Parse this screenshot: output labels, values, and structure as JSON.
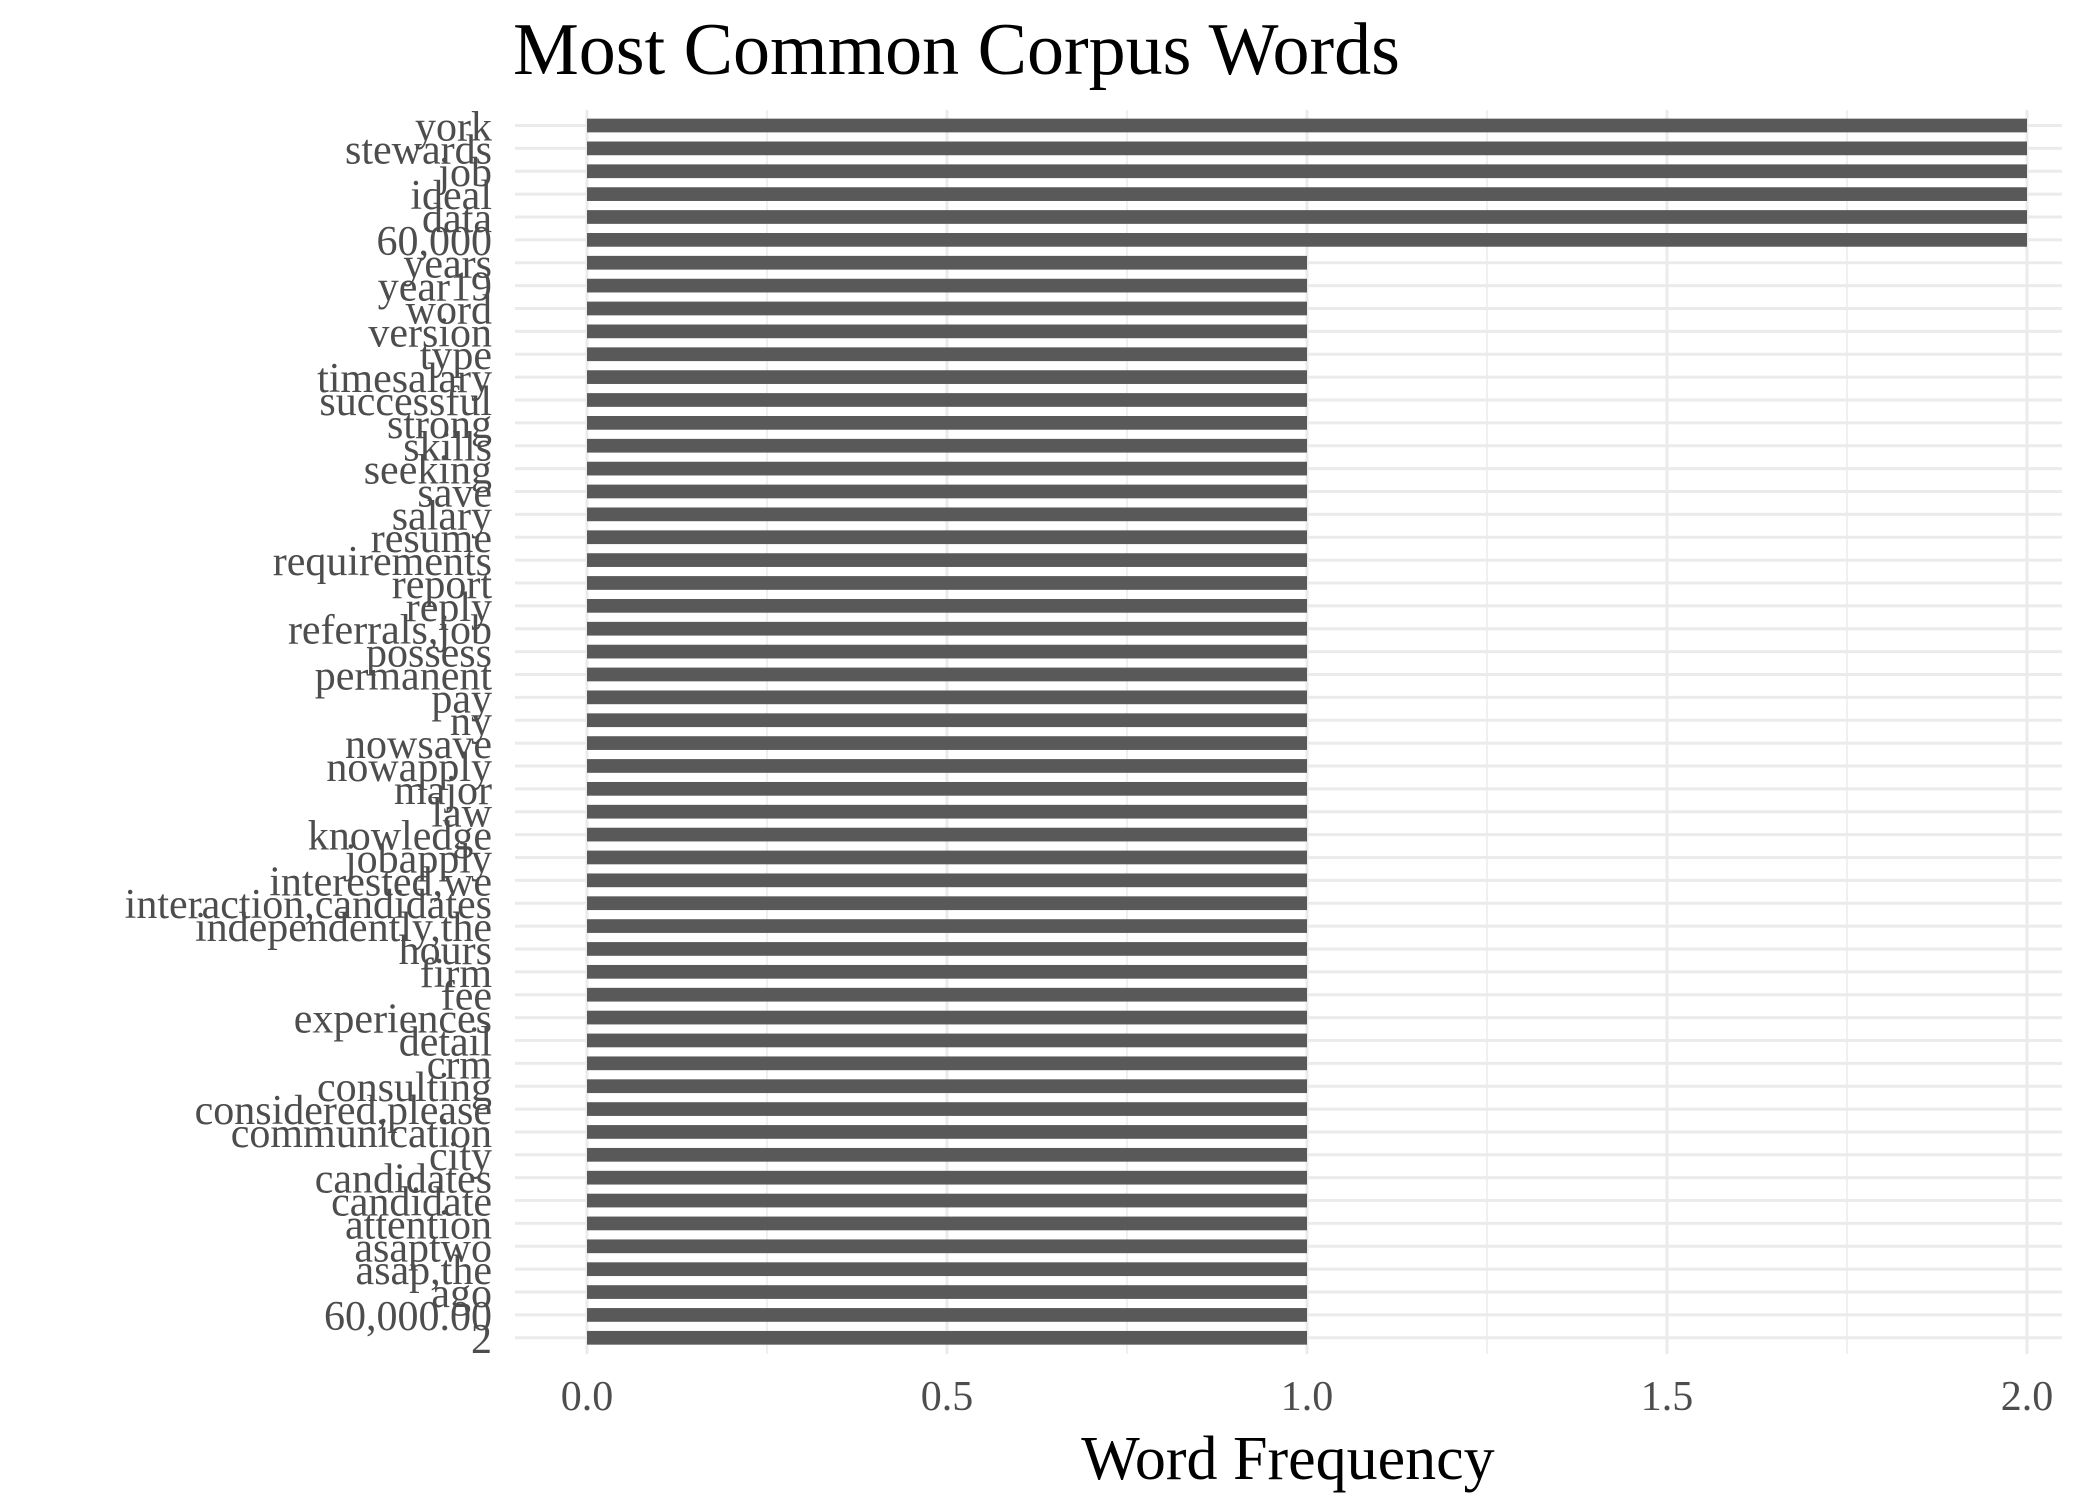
{
  "chart_data": {
    "type": "bar",
    "orientation": "horizontal",
    "title": "Most Common Corpus Words",
    "xlabel": "Word Frequency",
    "ylabel": "",
    "xlim": [
      -0.1,
      2.05
    ],
    "x_ticks": [
      "0.0",
      "0.5",
      "1.0",
      "1.5",
      "2.0"
    ],
    "grid": true,
    "legend": "none",
    "bar_color": "#595959",
    "grid_color": "#ebebeb",
    "categories": [
      "york",
      "stewards",
      "job",
      "ideal",
      "data",
      "60,000",
      "years",
      "year19",
      "word",
      "version",
      "type",
      "timesalary",
      "successful",
      "strong",
      "skills",
      "seeking",
      "save",
      "salary",
      "resume",
      "requirements",
      "report",
      "reply",
      "referrals,job",
      "possess",
      "permanent",
      "pay",
      "ny",
      "nowsave",
      "nowapply",
      "major",
      "law",
      "knowledge",
      "jobapply",
      "interested,we",
      "interaction,candidates",
      "independently,the",
      "hours",
      "firm",
      "fee",
      "experiences",
      "detail",
      "crm",
      "consulting",
      "considered,please",
      "communication",
      "city",
      "candidates",
      "candidate",
      "attention",
      "asaptwo",
      "asap,the",
      "ago",
      "60,000.00",
      "2"
    ],
    "values": [
      2,
      2,
      2,
      2,
      2,
      2,
      1,
      1,
      1,
      1,
      1,
      1,
      1,
      1,
      1,
      1,
      1,
      1,
      1,
      1,
      1,
      1,
      1,
      1,
      1,
      1,
      1,
      1,
      1,
      1,
      1,
      1,
      1,
      1,
      1,
      1,
      1,
      1,
      1,
      1,
      1,
      1,
      1,
      1,
      1,
      1,
      1,
      1,
      1,
      1,
      1,
      1,
      1,
      1
    ]
  }
}
